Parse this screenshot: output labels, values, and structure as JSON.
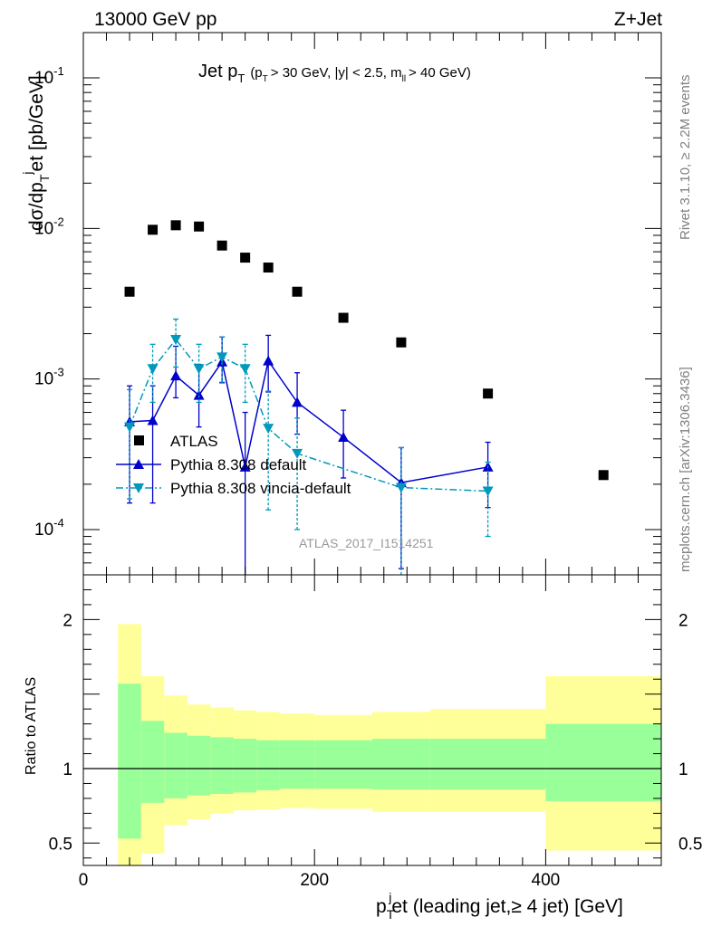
{
  "header": {
    "left": "13000 GeV pp",
    "right": "Z+Jet"
  },
  "title": {
    "main": "Jet p",
    "main_sub": "T",
    "detail_a": "(p",
    "detail_a_sub": "T",
    "detail_b": "> 30 GeV, |y| < 2.5, m",
    "detail_b_sub": "ll",
    "detail_c": "> 40 GeV)"
  },
  "side_labels": {
    "rivet": "Rivet 3.1.10, ≥ 2.2M events",
    "mcplots": "mcplots.cern.ch [arXiv:1306.3436]"
  },
  "watermark": "ATLAS_2017_I1514251",
  "colors": {
    "atlas": "#000000",
    "pythia_default": "#0000cc",
    "vincia": "#0099bb",
    "band_inner": "#99ff99",
    "band_outer": "#ffff99"
  },
  "chart_data": [
    {
      "type": "scatter",
      "panel": "main",
      "ylabel": "dσ/dp",
      "ylabel_sub": "T",
      "ylabel_sup": "j",
      "ylabel_rest": "et [pb/GeV]",
      "yscale": "log",
      "ylim": [
        5e-05,
        0.2
      ],
      "xlim": [
        0,
        500
      ],
      "yticks": [
        "10^-4",
        "10^-3",
        "10^-2",
        "10^-1"
      ],
      "legend_position": "lower-left",
      "series": [
        {
          "name": "ATLAS",
          "style": "square",
          "x": [
            40,
            60,
            80,
            100,
            120,
            140,
            160,
            185,
            225,
            275,
            350,
            450
          ],
          "y": [
            0.0038,
            0.0098,
            0.0105,
            0.0103,
            0.0077,
            0.0064,
            0.0055,
            0.0038,
            0.00255,
            0.00175,
            0.0008,
            0.00023
          ]
        },
        {
          "name": "Pythia 8.308 default",
          "style": "triangle-up-solid",
          "x": [
            40,
            60,
            80,
            100,
            120,
            140,
            160,
            185,
            225,
            275,
            350
          ],
          "y": [
            0.00052,
            0.00053,
            0.00105,
            0.00078,
            0.0013,
            0.00026,
            0.00132,
            0.0007,
            0.00041,
            0.000205,
            0.00026
          ],
          "err_low": [
            0.00015,
            0.00015,
            0.00075,
            0.00048,
            0.00095,
            3e-05,
            0.00082,
            0.00043,
            0.00022,
            5.5e-05,
            0.00014
          ],
          "err_high": [
            0.0009,
            0.0009,
            0.00165,
            0.00125,
            0.0019,
            0.0006,
            0.00195,
            0.0011,
            0.00062,
            0.00035,
            0.00038
          ]
        },
        {
          "name": "Pythia 8.308 vincia-default",
          "style": "triangle-down-dashdot",
          "x": [
            40,
            60,
            80,
            100,
            120,
            140,
            160,
            185,
            275,
            350
          ],
          "y": [
            0.00048,
            0.00117,
            0.00183,
            0.00117,
            0.0014,
            0.00117,
            0.00047,
            0.00032,
            0.00019,
            0.00018
          ],
          "err_low": [
            0.00016,
            0.0007,
            0.0012,
            0.0007,
            0.00094,
            0.0007,
            0.000135,
            0.0001,
            5e-05,
            9e-05
          ],
          "err_high": [
            0.00085,
            0.0017,
            0.0025,
            0.0017,
            0.0019,
            0.0017,
            0.00083,
            0.00055,
            0.00035,
            0.00028
          ]
        }
      ]
    },
    {
      "type": "area",
      "panel": "ratio",
      "ylabel": "Ratio to ATLAS",
      "xlabel_main": "p",
      "xlabel_sub": "T",
      "xlabel_sup": "j",
      "xlabel_rest": "et (leading jet,≥ 4 jet) [GeV]",
      "xlim": [
        0,
        500
      ],
      "ylim": [
        0.35,
        2.3
      ],
      "yticks": [
        0.5,
        1,
        2
      ],
      "xticks": [
        0,
        200,
        400
      ],
      "reference_line": 1,
      "bins": [
        30,
        50,
        70,
        90,
        110,
        130,
        150,
        170,
        200,
        250,
        300,
        400,
        500
      ],
      "inner_band_low": [
        0.53,
        0.77,
        0.8,
        0.82,
        0.83,
        0.84,
        0.855,
        0.865,
        0.865,
        0.86,
        0.86,
        0.78
      ],
      "inner_band_high": [
        1.57,
        1.32,
        1.24,
        1.22,
        1.21,
        1.2,
        1.19,
        1.19,
        1.19,
        1.2,
        1.2,
        1.3
      ],
      "outer_band_low": [
        0.33,
        0.43,
        0.62,
        0.66,
        0.7,
        0.72,
        0.725,
        0.735,
        0.73,
        0.71,
        0.71,
        0.45
      ],
      "outer_band_high": [
        1.97,
        1.62,
        1.49,
        1.43,
        1.41,
        1.39,
        1.38,
        1.37,
        1.36,
        1.38,
        1.4,
        1.62
      ]
    }
  ]
}
